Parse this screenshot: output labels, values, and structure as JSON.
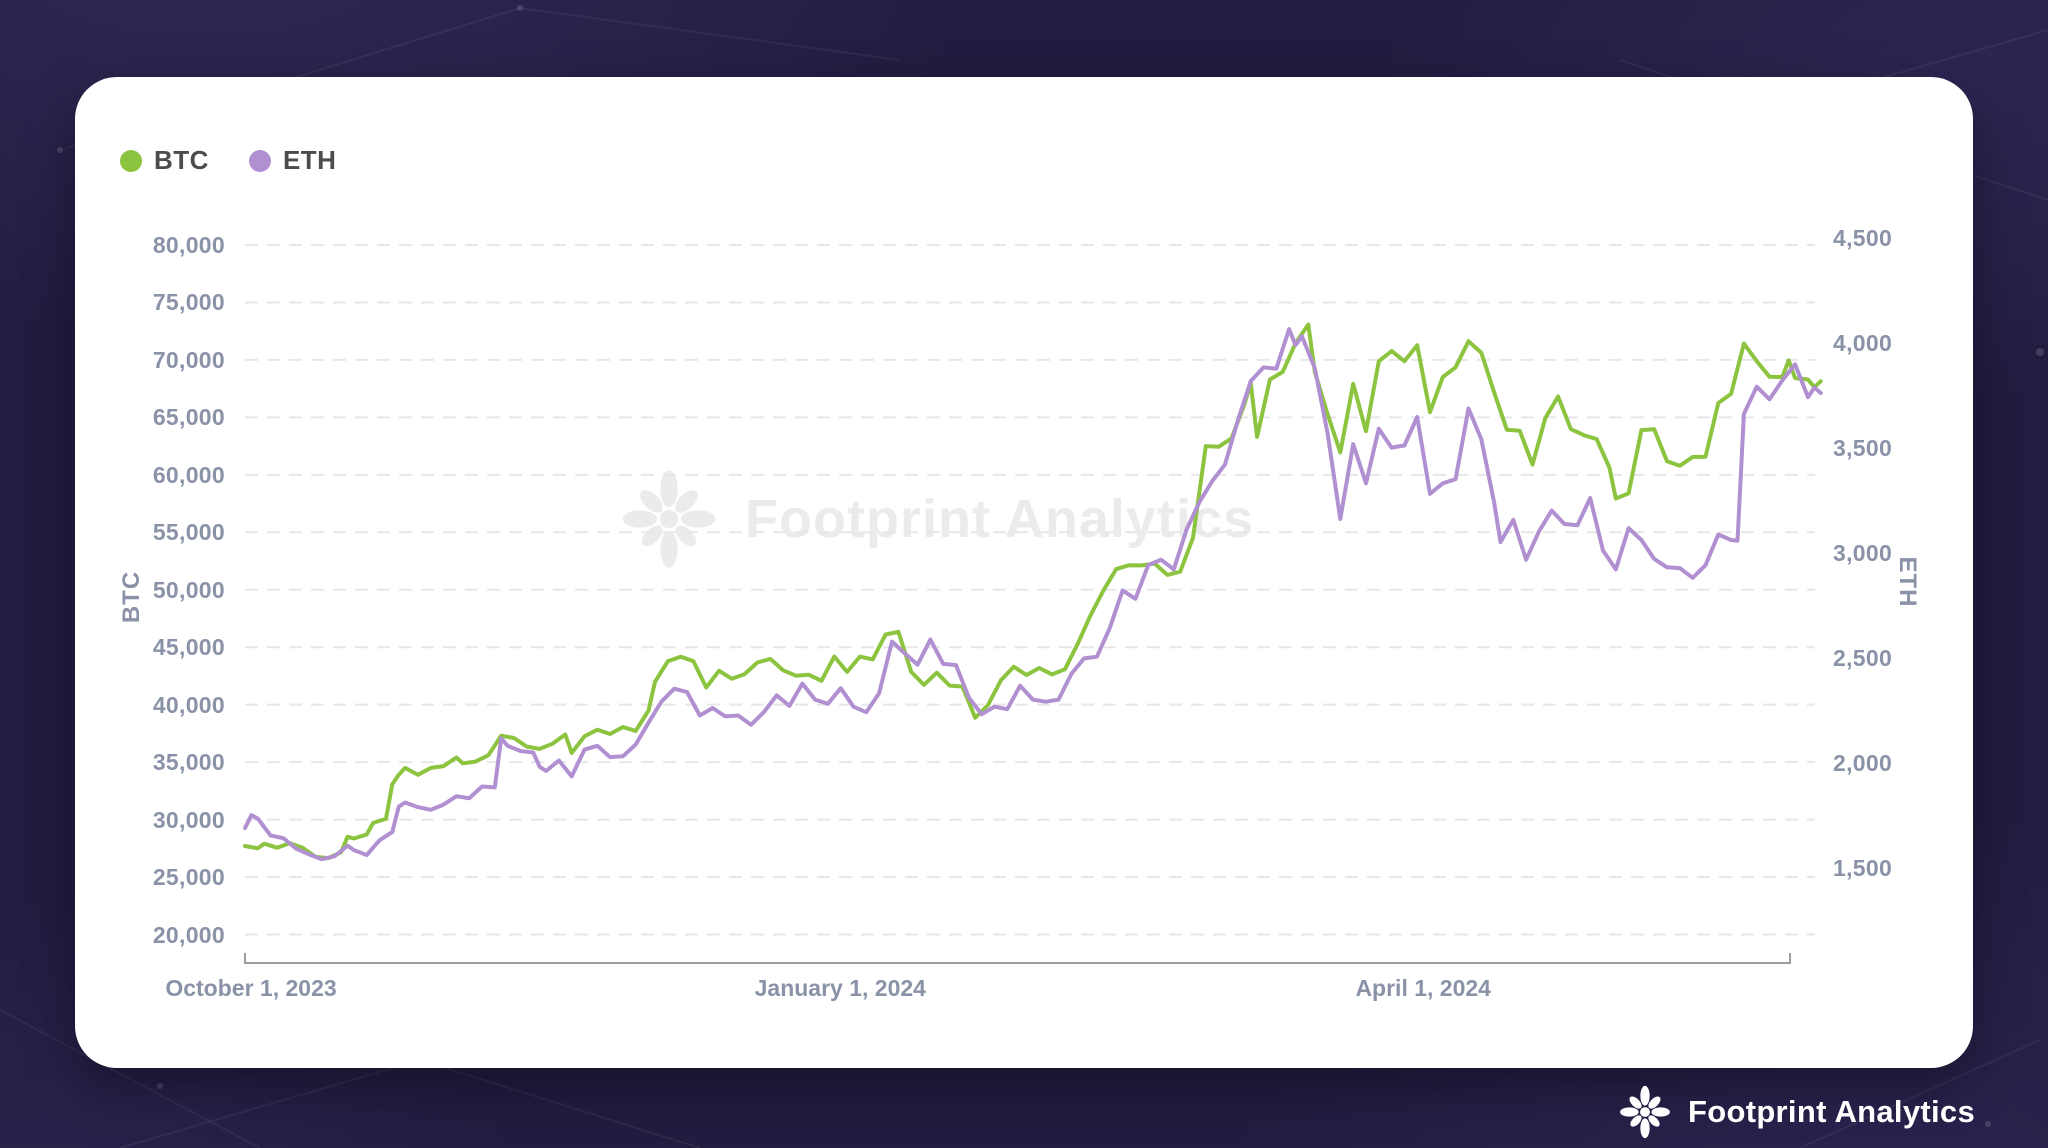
{
  "legend": [
    {
      "label": "BTC",
      "color": "#8cc43f"
    },
    {
      "label": "ETH",
      "color": "#b190d2"
    }
  ],
  "watermark": {
    "text": "Footprint Analytics"
  },
  "footer": {
    "brand": "Footprint Analytics"
  },
  "colors": {
    "btc_line": "#8cc43f",
    "eth_line": "#b190d2",
    "grid_line": "#e7e7e9",
    "axis_line": "#9b9ba1",
    "tick_text": "#8a92a8",
    "card_bg": "#ffffff",
    "page_bg": "#221c40",
    "watermark_text": "#ebebeb"
  },
  "chart_data": {
    "type": "line",
    "title": "",
    "legend_position": "top-left",
    "grid": {
      "show": true,
      "style": "dashed"
    },
    "x": {
      "unit": "days_since_start",
      "domain_days": [
        0,
        246
      ],
      "ticks": [
        {
          "day": 0,
          "label": "October 1, 2023"
        },
        {
          "day": 92,
          "label": "January 1, 2024"
        },
        {
          "day": 183,
          "label": "April 1, 2024"
        }
      ]
    },
    "y_left": {
      "title": "BTC",
      "min": 20000,
      "max": 80000,
      "tick_step": 5000,
      "tick_labels": [
        "80,000",
        "75,000",
        "70,000",
        "65,000",
        "60,000",
        "55,000",
        "50,000",
        "45,000",
        "40,000",
        "35,000",
        "30,000",
        "25,000",
        "20,000"
      ]
    },
    "y_right": {
      "title": "ETH",
      "min": 1500,
      "max": 4500,
      "tick_step": 500,
      "tick_labels": [
        "4,500",
        "4,000",
        "3,500",
        "3,000",
        "2,500",
        "2,000",
        "1,500"
      ]
    },
    "series": [
      {
        "name": "BTC",
        "axis": "left",
        "color": "#8cc43f",
        "points": [
          [
            0,
            27700
          ],
          [
            2,
            27500
          ],
          [
            3,
            27900
          ],
          [
            5,
            27550
          ],
          [
            7,
            27950
          ],
          [
            9,
            27550
          ],
          [
            11,
            26750
          ],
          [
            13,
            26650
          ],
          [
            15,
            27150
          ],
          [
            16,
            28500
          ],
          [
            17,
            28350
          ],
          [
            19,
            28700
          ],
          [
            20,
            29700
          ],
          [
            21,
            29900
          ],
          [
            22,
            30050
          ],
          [
            23,
            33080
          ],
          [
            24,
            33900
          ],
          [
            25,
            34500
          ],
          [
            27,
            33900
          ],
          [
            29,
            34500
          ],
          [
            31,
            34650
          ],
          [
            33,
            35400
          ],
          [
            34,
            34900
          ],
          [
            36,
            35050
          ],
          [
            38,
            35600
          ],
          [
            40,
            37300
          ],
          [
            42,
            37100
          ],
          [
            44,
            36350
          ],
          [
            46,
            36150
          ],
          [
            48,
            36600
          ],
          [
            50,
            37400
          ],
          [
            51,
            35800
          ],
          [
            53,
            37250
          ],
          [
            55,
            37820
          ],
          [
            57,
            37450
          ],
          [
            59,
            38060
          ],
          [
            61,
            37720
          ],
          [
            63,
            39480
          ],
          [
            64,
            41990
          ],
          [
            66,
            43770
          ],
          [
            68,
            44170
          ],
          [
            70,
            43790
          ],
          [
            72,
            41490
          ],
          [
            74,
            42950
          ],
          [
            76,
            42260
          ],
          [
            78,
            42660
          ],
          [
            80,
            43670
          ],
          [
            82,
            43980
          ],
          [
            84,
            42990
          ],
          [
            86,
            42520
          ],
          [
            88,
            42610
          ],
          [
            90,
            42080
          ],
          [
            92,
            44190
          ],
          [
            94,
            42850
          ],
          [
            96,
            44180
          ],
          [
            98,
            43940
          ],
          [
            100,
            46110
          ],
          [
            102,
            46340
          ],
          [
            104,
            42850
          ],
          [
            106,
            41730
          ],
          [
            108,
            42780
          ],
          [
            110,
            41660
          ],
          [
            112,
            41580
          ],
          [
            114,
            38860
          ],
          [
            116,
            39970
          ],
          [
            118,
            42120
          ],
          [
            120,
            43300
          ],
          [
            122,
            42580
          ],
          [
            124,
            43190
          ],
          [
            126,
            42630
          ],
          [
            128,
            43080
          ],
          [
            130,
            45290
          ],
          [
            132,
            47770
          ],
          [
            134,
            49920
          ],
          [
            136,
            51800
          ],
          [
            138,
            52140
          ],
          [
            140,
            52120
          ],
          [
            142,
            52280
          ],
          [
            144,
            51290
          ],
          [
            146,
            51570
          ],
          [
            148,
            54520
          ],
          [
            150,
            62500
          ],
          [
            152,
            62440
          ],
          [
            154,
            63170
          ],
          [
            156,
            66100
          ],
          [
            157,
            68000
          ],
          [
            158,
            63300
          ],
          [
            160,
            68300
          ],
          [
            162,
            68960
          ],
          [
            164,
            71450
          ],
          [
            166,
            73080
          ],
          [
            167,
            69000
          ],
          [
            169,
            65300
          ],
          [
            171,
            61940
          ],
          [
            173,
            67910
          ],
          [
            175,
            63800
          ],
          [
            177,
            69880
          ],
          [
            179,
            70780
          ],
          [
            181,
            69890
          ],
          [
            183,
            71280
          ],
          [
            185,
            65460
          ],
          [
            187,
            68510
          ],
          [
            189,
            69360
          ],
          [
            191,
            71630
          ],
          [
            193,
            70630
          ],
          [
            195,
            67190
          ],
          [
            197,
            63920
          ],
          [
            199,
            63840
          ],
          [
            201,
            60890
          ],
          [
            203,
            64940
          ],
          [
            205,
            66820
          ],
          [
            207,
            63970
          ],
          [
            209,
            63460
          ],
          [
            211,
            63110
          ],
          [
            213,
            60640
          ],
          [
            214,
            57940
          ],
          [
            216,
            58380
          ],
          [
            218,
            63890
          ],
          [
            220,
            63970
          ],
          [
            222,
            61190
          ],
          [
            224,
            60790
          ],
          [
            226,
            61550
          ],
          [
            228,
            61580
          ],
          [
            230,
            66250
          ],
          [
            232,
            67050
          ],
          [
            234,
            71420
          ],
          [
            236,
            69900
          ],
          [
            238,
            68530
          ],
          [
            240,
            68510
          ],
          [
            241,
            69960
          ],
          [
            242,
            68420
          ],
          [
            244,
            68300
          ],
          [
            245,
            67630
          ],
          [
            246,
            68150
          ]
        ]
      },
      {
        "name": "ETH",
        "axis": "right",
        "color": "#b190d2",
        "points": [
          [
            0,
            1690
          ],
          [
            1,
            1752
          ],
          [
            2,
            1735
          ],
          [
            4,
            1655
          ],
          [
            6,
            1642
          ],
          [
            8,
            1592
          ],
          [
            10,
            1565
          ],
          [
            12,
            1542
          ],
          [
            14,
            1556
          ],
          [
            16,
            1606
          ],
          [
            17,
            1585
          ],
          [
            19,
            1562
          ],
          [
            21,
            1632
          ],
          [
            23,
            1672
          ],
          [
            24,
            1792
          ],
          [
            25,
            1812
          ],
          [
            27,
            1790
          ],
          [
            29,
            1777
          ],
          [
            31,
            1802
          ],
          [
            33,
            1842
          ],
          [
            35,
            1832
          ],
          [
            37,
            1888
          ],
          [
            39,
            1884
          ],
          [
            40,
            2118
          ],
          [
            41,
            2082
          ],
          [
            43,
            2057
          ],
          [
            45,
            2050
          ],
          [
            46,
            1982
          ],
          [
            47,
            1962
          ],
          [
            49,
            2012
          ],
          [
            51,
            1936
          ],
          [
            53,
            2064
          ],
          [
            55,
            2082
          ],
          [
            57,
            2028
          ],
          [
            59,
            2032
          ],
          [
            61,
            2088
          ],
          [
            63,
            2192
          ],
          [
            65,
            2292
          ],
          [
            67,
            2354
          ],
          [
            69,
            2338
          ],
          [
            71,
            2226
          ],
          [
            73,
            2262
          ],
          [
            75,
            2222
          ],
          [
            77,
            2226
          ],
          [
            79,
            2182
          ],
          [
            81,
            2242
          ],
          [
            83,
            2322
          ],
          [
            85,
            2272
          ],
          [
            87,
            2378
          ],
          [
            89,
            2302
          ],
          [
            91,
            2282
          ],
          [
            93,
            2356
          ],
          [
            95,
            2268
          ],
          [
            97,
            2242
          ],
          [
            99,
            2332
          ],
          [
            101,
            2578
          ],
          [
            103,
            2522
          ],
          [
            105,
            2468
          ],
          [
            107,
            2588
          ],
          [
            109,
            2472
          ],
          [
            111,
            2466
          ],
          [
            113,
            2312
          ],
          [
            115,
            2232
          ],
          [
            117,
            2268
          ],
          [
            119,
            2256
          ],
          [
            121,
            2368
          ],
          [
            123,
            2302
          ],
          [
            125,
            2292
          ],
          [
            127,
            2302
          ],
          [
            129,
            2424
          ],
          [
            131,
            2498
          ],
          [
            133,
            2506
          ],
          [
            135,
            2642
          ],
          [
            137,
            2822
          ],
          [
            139,
            2782
          ],
          [
            141,
            2942
          ],
          [
            143,
            2968
          ],
          [
            145,
            2922
          ],
          [
            147,
            3112
          ],
          [
            149,
            3242
          ],
          [
            151,
            3342
          ],
          [
            153,
            3422
          ],
          [
            155,
            3632
          ],
          [
            157,
            3818
          ],
          [
            159,
            3884
          ],
          [
            161,
            3878
          ],
          [
            163,
            4066
          ],
          [
            164,
            3990
          ],
          [
            165,
            4032
          ],
          [
            167,
            3882
          ],
          [
            169,
            3572
          ],
          [
            171,
            3162
          ],
          [
            173,
            3518
          ],
          [
            175,
            3332
          ],
          [
            177,
            3592
          ],
          [
            179,
            3502
          ],
          [
            181,
            3512
          ],
          [
            183,
            3648
          ],
          [
            185,
            3282
          ],
          [
            187,
            3332
          ],
          [
            189,
            3352
          ],
          [
            191,
            3688
          ],
          [
            193,
            3542
          ],
          [
            195,
            3242
          ],
          [
            196,
            3052
          ],
          [
            198,
            3158
          ],
          [
            200,
            2968
          ],
          [
            202,
            3102
          ],
          [
            204,
            3202
          ],
          [
            206,
            3138
          ],
          [
            208,
            3132
          ],
          [
            210,
            3262
          ],
          [
            212,
            3012
          ],
          [
            214,
            2922
          ],
          [
            216,
            3118
          ],
          [
            218,
            3062
          ],
          [
            220,
            2972
          ],
          [
            222,
            2932
          ],
          [
            224,
            2928
          ],
          [
            226,
            2882
          ],
          [
            228,
            2942
          ],
          [
            230,
            3088
          ],
          [
            232,
            3062
          ],
          [
            233,
            3058
          ],
          [
            234,
            3662
          ],
          [
            236,
            3792
          ],
          [
            238,
            3732
          ],
          [
            240,
            3822
          ],
          [
            242,
            3898
          ],
          [
            244,
            3742
          ],
          [
            245,
            3788
          ],
          [
            246,
            3762
          ]
        ]
      }
    ]
  }
}
